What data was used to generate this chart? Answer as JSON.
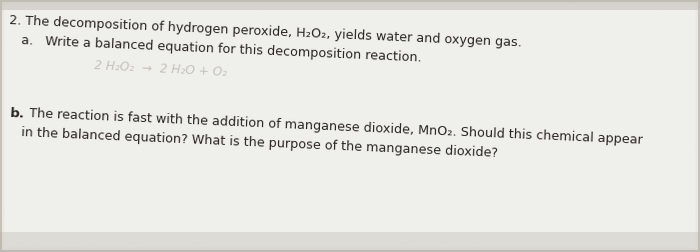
{
  "bg_color": "#c8c3ba",
  "paper_color": "#efefeb",
  "text_color": "#2a2520",
  "figsize": [
    7.0,
    2.52
  ],
  "dpi": 100,
  "line2_text": "2. The decomposition of hydrogen peroxide, H₂O₂, yields water and oxygen gas.",
  "line2a_text": "a.   Write a balanced equation for this decomposition reaction.",
  "line_b_label": "b.",
  "line_b1_text": "The reaction is fast with the addition of manganese dioxide, MnO₂. Should this chemical appear",
  "line_b2_text": "in the balanced equation? What is the purpose of the manganese dioxide?",
  "handwriting": "2 H₂O₂  →  2 H₂O + O₂",
  "tilt_deg": -2.5,
  "fs_main": 9.2,
  "fs_b": 9.2
}
